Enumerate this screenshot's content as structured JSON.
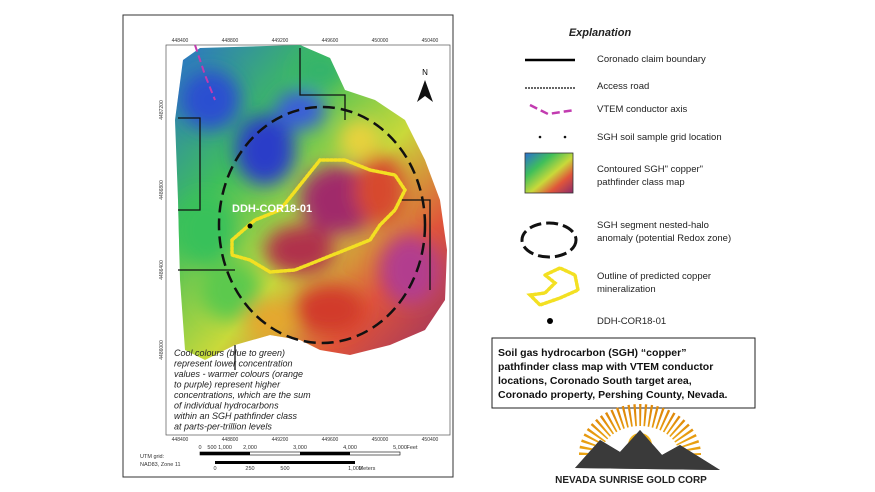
{
  "map": {
    "top_coords": [
      "448400",
      "448800",
      "449200",
      "449600",
      "450000",
      "450400"
    ],
    "left_coords": [
      "4487200",
      "4486800",
      "4486400",
      "4486000"
    ],
    "north": "N",
    "drill_label": "DDH-COR18-01",
    "note_lines": [
      "Cool colours (blue to green)",
      "represent lower concentration",
      "values - warmer colours (orange",
      "to purple) represent higher",
      "concentrations, which are the sum",
      "of individual hydrocarbons",
      "within an SGH pathfinder class",
      "at parts-per-trillion levels"
    ],
    "scale_feet": [
      "0",
      "500",
      "1,000",
      "2,000",
      "3,000",
      "4,000",
      "5,000",
      "Feet"
    ],
    "scale_meters": [
      "0",
      "250",
      "500",
      "1,000",
      "Meters"
    ],
    "grid_note": [
      "UTM grid:",
      "NAD83, Zone 11"
    ]
  },
  "legend": {
    "title": "Explanation",
    "items": [
      [
        "Coronado claim boundary"
      ],
      [
        "Access road"
      ],
      [
        "VTEM conductor  axis"
      ],
      [
        "SGH soil sample grid location"
      ],
      [
        "Contoured SGH\" copper\"",
        "pathfinder class map"
      ],
      [
        "SGH segment nested-halo",
        "anomaly (potential Redox zone)"
      ],
      [
        "Outline of predicted copper",
        "mineralization"
      ],
      [
        "DDH-COR18-01"
      ]
    ]
  },
  "caption": [
    "Soil gas hydrocarbon (SGH) “copper”",
    "pathfinder class map with VTEM conductor",
    "locations, Coronado South target area,",
    "Coronado property, Pershing County, Nevada."
  ],
  "logo": "NEVADA SUNRISE GOLD CORP"
}
